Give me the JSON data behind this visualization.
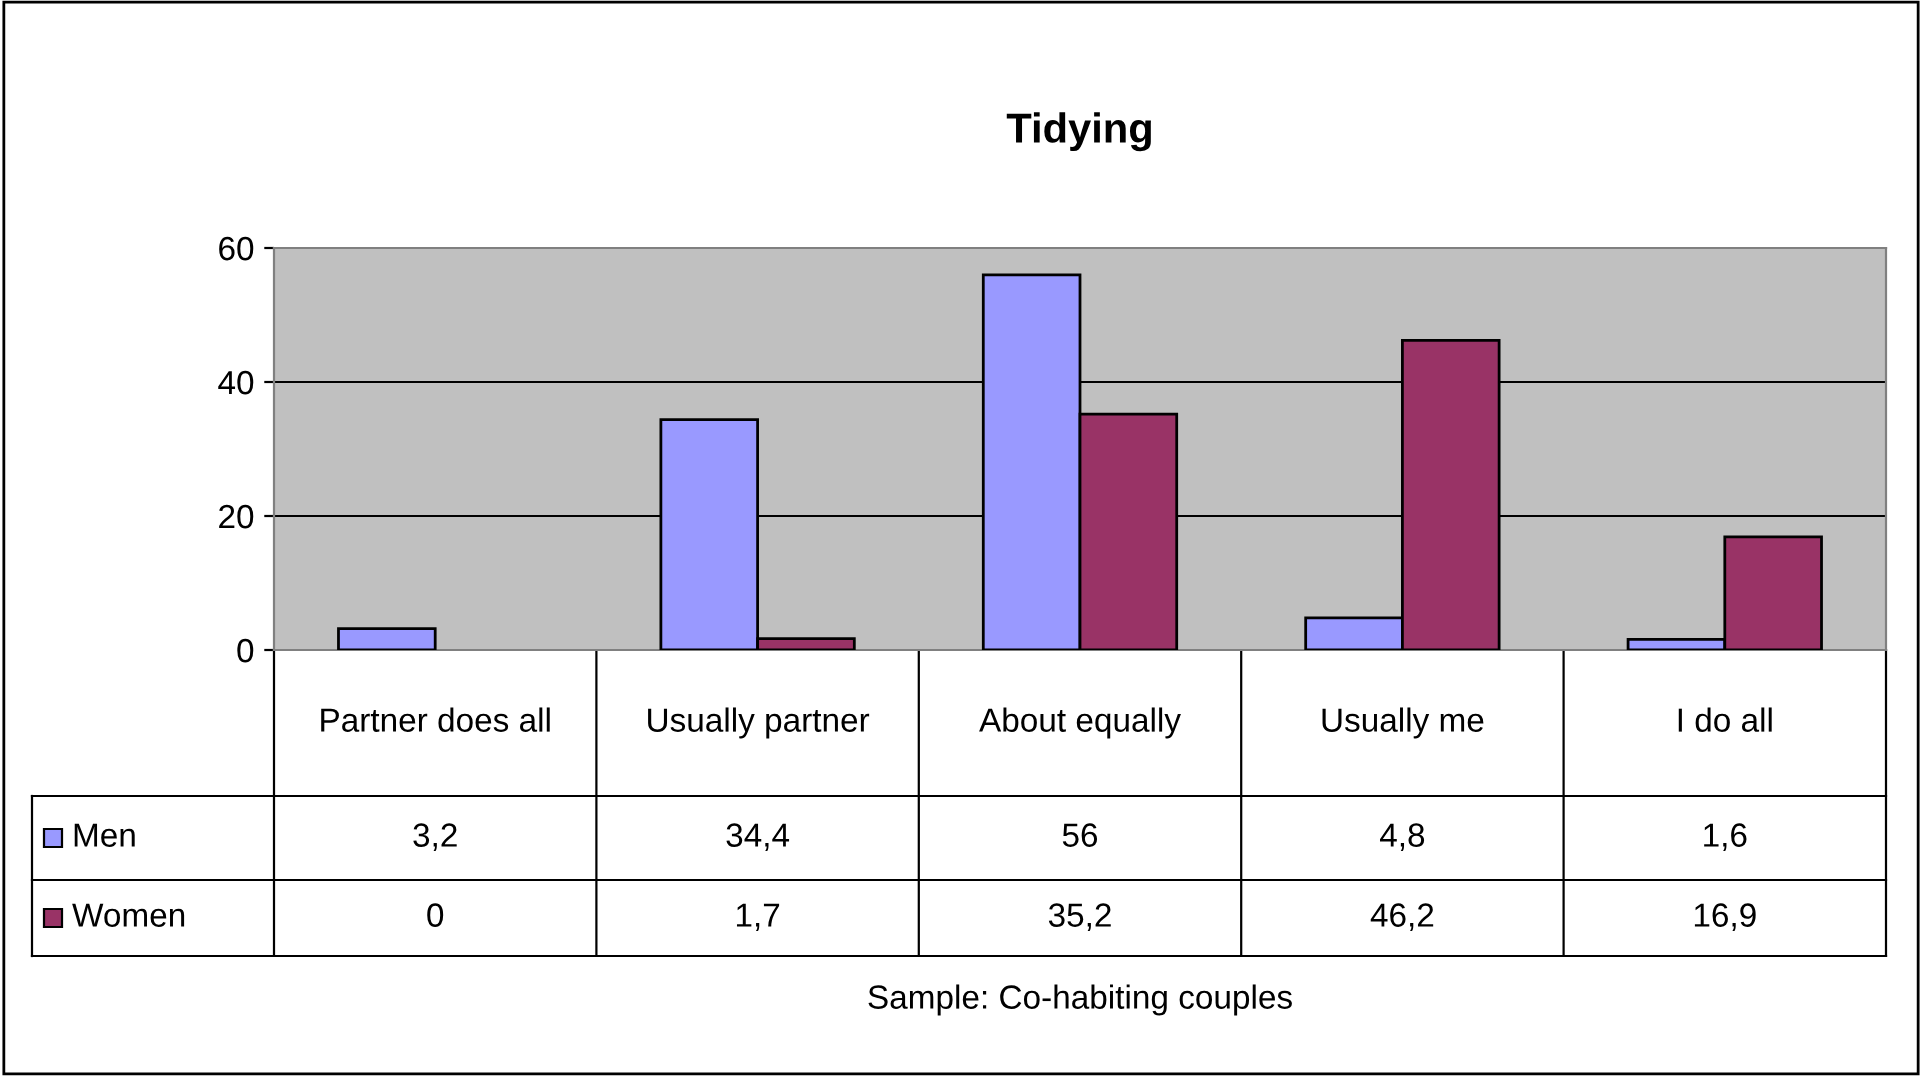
{
  "chart_data": {
    "type": "bar",
    "title": "Tidying",
    "categories": [
      "Partner does all",
      "Usually partner",
      "About equally",
      "Usually me",
      "I do all"
    ],
    "series": [
      {
        "name": "Men",
        "color": "#9999ff",
        "values": [
          3.2,
          34.4,
          56,
          4.8,
          1.6
        ],
        "value_labels": [
          "3,2",
          "34,4",
          "56",
          "4,8",
          "1,6"
        ]
      },
      {
        "name": "Women",
        "color": "#993366",
        "values": [
          0,
          1.7,
          35.2,
          46.2,
          16.9
        ],
        "value_labels": [
          "0",
          "1,7",
          "35,2",
          "46,2",
          "16,9"
        ]
      }
    ],
    "ylim": [
      0,
      60
    ],
    "yticks": [
      0,
      20,
      40,
      60
    ],
    "grid": "y",
    "legend": "bottom left",
    "annotations": [
      "Sample: Co-habiting couples"
    ]
  }
}
